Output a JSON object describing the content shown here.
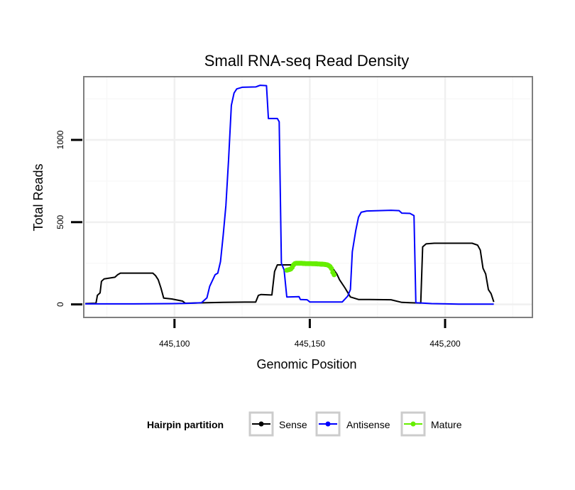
{
  "chart_data": {
    "type": "line",
    "title": "Small RNA-seq Read Density",
    "xlabel": "Genomic Position",
    "ylabel": "Total Reads",
    "xlim": [
      445067,
      445232
    ],
    "ylim": [
      -75,
      1380
    ],
    "x_ticks": [
      445100,
      445150,
      445200
    ],
    "x_tick_labels": [
      "445,100",
      "445,150",
      "445,200"
    ],
    "y_ticks": [
      0,
      500,
      1000
    ],
    "y_tick_labels": [
      "0",
      "500",
      "1000"
    ],
    "grid": true,
    "legend": {
      "title": "Hairpin partition",
      "position": "bottom",
      "entries": [
        "Sense",
        "Antisense",
        "Mature"
      ]
    },
    "series": [
      {
        "name": "Sense",
        "color": "#000000",
        "marker": false,
        "points": [
          [
            445067,
            5
          ],
          [
            445071,
            7
          ],
          [
            445071.5,
            55
          ],
          [
            445072.5,
            70
          ],
          [
            445073,
            140
          ],
          [
            445074,
            155
          ],
          [
            445078,
            165
          ],
          [
            445079,
            180
          ],
          [
            445080,
            190
          ],
          [
            445086,
            190
          ],
          [
            445092,
            190
          ],
          [
            445093,
            175
          ],
          [
            445094,
            150
          ],
          [
            445095,
            100
          ],
          [
            445096,
            38
          ],
          [
            445099,
            33
          ],
          [
            445103,
            20
          ],
          [
            445104,
            7
          ],
          [
            445112,
            10
          ],
          [
            445118,
            12
          ],
          [
            445126,
            14
          ],
          [
            445130,
            14
          ],
          [
            445131,
            55
          ],
          [
            445132,
            60
          ],
          [
            445136,
            57
          ],
          [
            445137,
            200
          ],
          [
            445138,
            240
          ],
          [
            445150,
            240
          ],
          [
            445158,
            230
          ],
          [
            445160,
            185
          ],
          [
            445161,
            150
          ],
          [
            445163,
            100
          ],
          [
            445165,
            45
          ],
          [
            445168,
            30
          ],
          [
            445172,
            30
          ],
          [
            445180,
            28
          ],
          [
            445184,
            12
          ],
          [
            445187,
            10
          ],
          [
            445191,
            8
          ],
          [
            445191.7,
            350
          ],
          [
            445193,
            368
          ],
          [
            445196,
            372
          ],
          [
            445210,
            372
          ],
          [
            445212,
            360
          ],
          [
            445213,
            330
          ],
          [
            445214,
            220
          ],
          [
            445215,
            185
          ],
          [
            445216,
            90
          ],
          [
            445217,
            65
          ],
          [
            445218,
            15
          ]
        ]
      },
      {
        "name": "Antisense",
        "color": "#0000ff",
        "marker": false,
        "points": [
          [
            445067,
            3
          ],
          [
            445085,
            3
          ],
          [
            445100,
            5
          ],
          [
            445106,
            7
          ],
          [
            445110,
            10
          ],
          [
            445112,
            40
          ],
          [
            445113,
            110
          ],
          [
            445115,
            180
          ],
          [
            445116,
            190
          ],
          [
            445117,
            260
          ],
          [
            445118,
            420
          ],
          [
            445119,
            600
          ],
          [
            445120,
            880
          ],
          [
            445121,
            1210
          ],
          [
            445122,
            1285
          ],
          [
            445123,
            1310
          ],
          [
            445125,
            1320
          ],
          [
            445130,
            1322
          ],
          [
            445131,
            1328
          ],
          [
            445131.7,
            1332
          ],
          [
            445134,
            1330
          ],
          [
            445134.7,
            1130
          ],
          [
            445138,
            1130
          ],
          [
            445138.7,
            1110
          ],
          [
            445139.5,
            250
          ],
          [
            445140.5,
            210
          ],
          [
            445141.5,
            45
          ],
          [
            445146,
            47
          ],
          [
            445146.5,
            30
          ],
          [
            445149,
            28
          ],
          [
            445150,
            15
          ],
          [
            445160,
            15
          ],
          [
            445162,
            15
          ],
          [
            445164,
            50
          ],
          [
            445165,
            90
          ],
          [
            445165.7,
            320
          ],
          [
            445167,
            450
          ],
          [
            445168,
            530
          ],
          [
            445169,
            560
          ],
          [
            445171,
            568
          ],
          [
            445180,
            572
          ],
          [
            445183,
            570
          ],
          [
            445184,
            555
          ],
          [
            445187,
            553
          ],
          [
            445188.5,
            540
          ],
          [
            445189.2,
            10
          ],
          [
            445195,
            5
          ],
          [
            445205,
            2
          ],
          [
            445218,
            2
          ]
        ]
      },
      {
        "name": "Mature",
        "color": "#66ee00",
        "marker": true,
        "points": [
          [
            445141.5,
            208
          ],
          [
            445142,
            210
          ],
          [
            445142.5,
            212
          ],
          [
            445143,
            215
          ],
          [
            445143.5,
            225
          ],
          [
            445144,
            240
          ],
          [
            445144.5,
            248
          ],
          [
            445145,
            250
          ],
          [
            445145.5,
            250
          ],
          [
            445146,
            250
          ],
          [
            445146.5,
            250
          ],
          [
            445147,
            250
          ],
          [
            445147.5,
            249
          ],
          [
            445148,
            249
          ],
          [
            445148.5,
            248
          ],
          [
            445149,
            248
          ],
          [
            445149.5,
            248
          ],
          [
            445150,
            248
          ],
          [
            445150.5,
            248
          ],
          [
            445151,
            247
          ],
          [
            445151.5,
            247
          ],
          [
            445152,
            247
          ],
          [
            445152.5,
            247
          ],
          [
            445153,
            246
          ],
          [
            445153.5,
            246
          ],
          [
            445154,
            245
          ],
          [
            445154.5,
            245
          ],
          [
            445155,
            244
          ],
          [
            445155.5,
            243
          ],
          [
            445156,
            242
          ],
          [
            445156.5,
            240
          ],
          [
            445157,
            236
          ],
          [
            445157.5,
            230
          ],
          [
            445158,
            218
          ],
          [
            445158.5,
            195
          ],
          [
            445159,
            180
          ]
        ]
      }
    ]
  }
}
